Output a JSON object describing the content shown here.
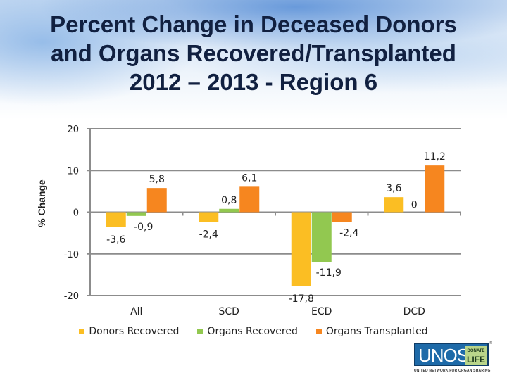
{
  "slide": {
    "title": "Percent Change in Deceased Donors\nand Organs Recovered/Transplanted\n2012 – 2013 - Region 6",
    "logo": {
      "main_text": "UNOS",
      "badge_line1": "DONATE",
      "badge_line2": "LIFE",
      "subtitle": "UNITED NETWORK FOR ORGAN SHARING",
      "trademark": "®"
    }
  },
  "chart_data": {
    "type": "bar",
    "title": "Percent Change in Deceased Donors and Organs Recovered/Transplanted 2012 – 2013 - Region 6",
    "xlabel": "",
    "ylabel": "% Change",
    "categories": [
      "All",
      "SCD",
      "ECD",
      "DCD"
    ],
    "series": [
      {
        "name": "Donors Recovered",
        "color": "#FBBE23",
        "values": [
          -3.6,
          -2.4,
          -17.8,
          3.6
        ],
        "labels": [
          "-3,6",
          "-2,4",
          "-17,8",
          "3,6"
        ]
      },
      {
        "name": "Organs Recovered",
        "color": "#92C850",
        "values": [
          -0.9,
          0.8,
          -11.9,
          0
        ],
        "labels": [
          "-0,9",
          "0,8",
          "-11,9",
          "0"
        ]
      },
      {
        "name": "Organs Transplanted",
        "color": "#F6861F",
        "values": [
          5.8,
          6.1,
          -2.4,
          11.2
        ],
        "labels": [
          "5,8",
          "6,1",
          "-2,4",
          "11,2"
        ]
      }
    ],
    "ylim": [
      -20,
      20
    ],
    "yticks": [
      -20,
      -10,
      0,
      10,
      20
    ],
    "ytick_labels": [
      "-20",
      "-10",
      "0",
      "10",
      "20"
    ],
    "grid": true,
    "legend_position": "bottom",
    "axis_color": "#8C8C8C"
  }
}
